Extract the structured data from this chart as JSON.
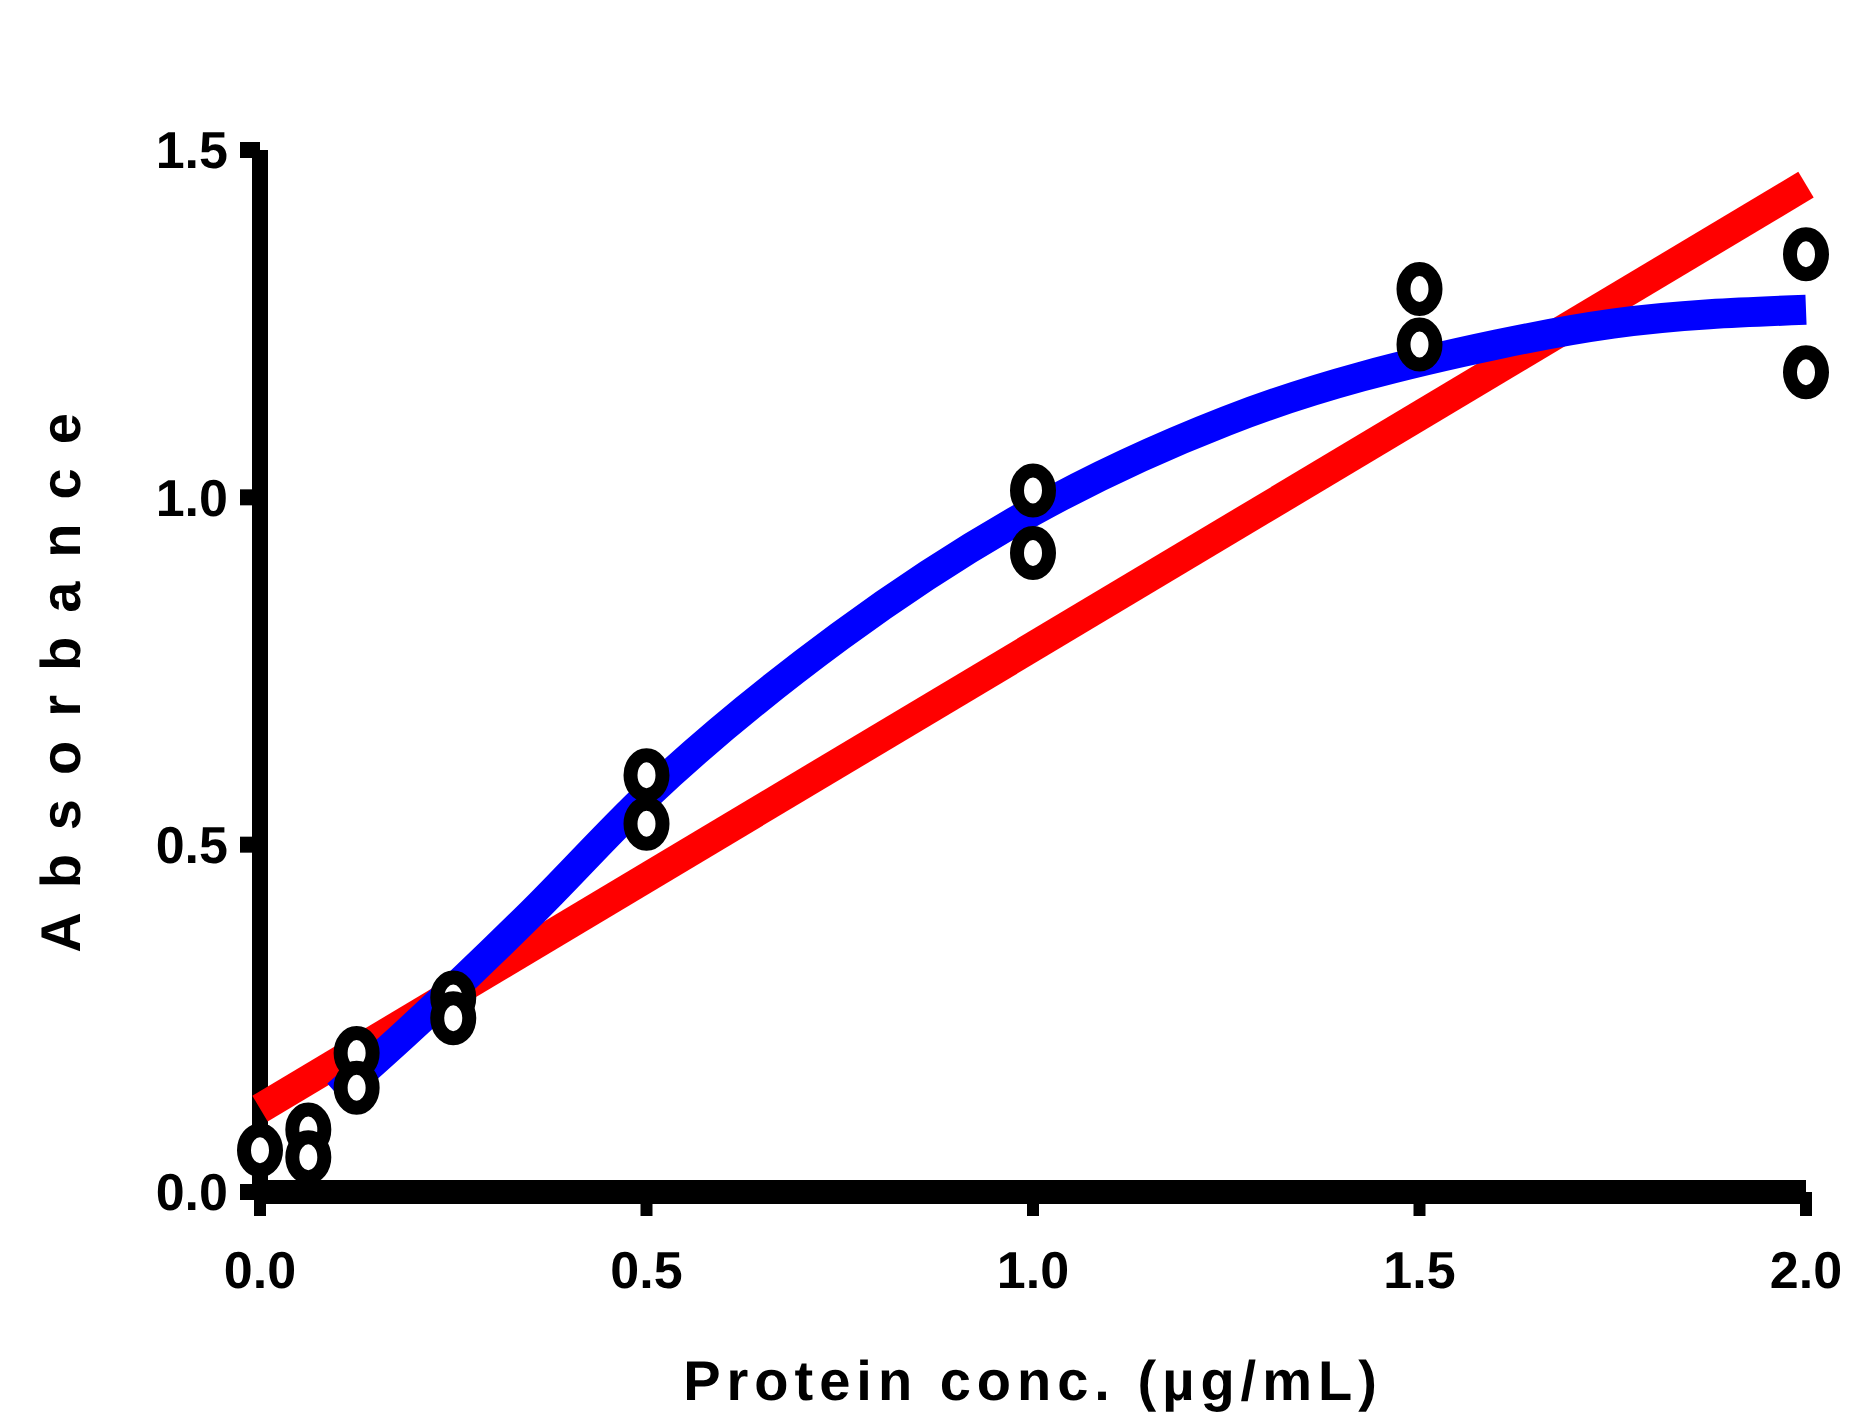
{
  "chart_data": {
    "type": "scatter",
    "xlabel": "Protein conc. (µg/mL)",
    "ylabel": "Absorbance",
    "xlim": [
      0,
      2
    ],
    "ylim": [
      0,
      1.5
    ],
    "xticks": [
      {
        "value": 0,
        "label": "0.0"
      },
      {
        "value": 0.5,
        "label": "0.5"
      },
      {
        "value": 1,
        "label": "1.0"
      },
      {
        "value": 1.5,
        "label": "1.5"
      },
      {
        "value": 2,
        "label": "2.0"
      }
    ],
    "yticks": [
      {
        "value": 0,
        "label": "0.0"
      },
      {
        "value": 0.5,
        "label": "0.5"
      },
      {
        "value": 1,
        "label": "1.0"
      },
      {
        "value": 1.5,
        "label": "1.5"
      }
    ],
    "grid": false,
    "series": [
      {
        "type": "line",
        "color": "#ff0000",
        "x": [
          0,
          2
        ],
        "values": [
          0.12,
          1.45
        ]
      },
      {
        "type": "line",
        "color": "#0000ff",
        "x": [
          0.1,
          0.19,
          0.35,
          0.5,
          0.75,
          1,
          1.25,
          1.6,
          1.75,
          2
        ],
        "values": [
          0.14,
          0.23,
          0.4,
          0.57,
          0.8,
          0.98,
          1.11,
          1.22,
          1.25,
          1.27
        ]
      },
      {
        "color": "#000000",
        "marker": "circle",
        "x": [
          0,
          0.0625,
          0.0625,
          0.125,
          0.125,
          0.25,
          0.25,
          0.5,
          0.5,
          1,
          1,
          1.5,
          1.5,
          2,
          2
        ],
        "values": [
          0.06,
          0.09,
          0.05,
          0.2,
          0.15,
          0.28,
          0.25,
          0.6,
          0.53,
          1.01,
          0.92,
          1.3,
          1.22,
          1.35,
          1.18
        ]
      }
    ]
  }
}
